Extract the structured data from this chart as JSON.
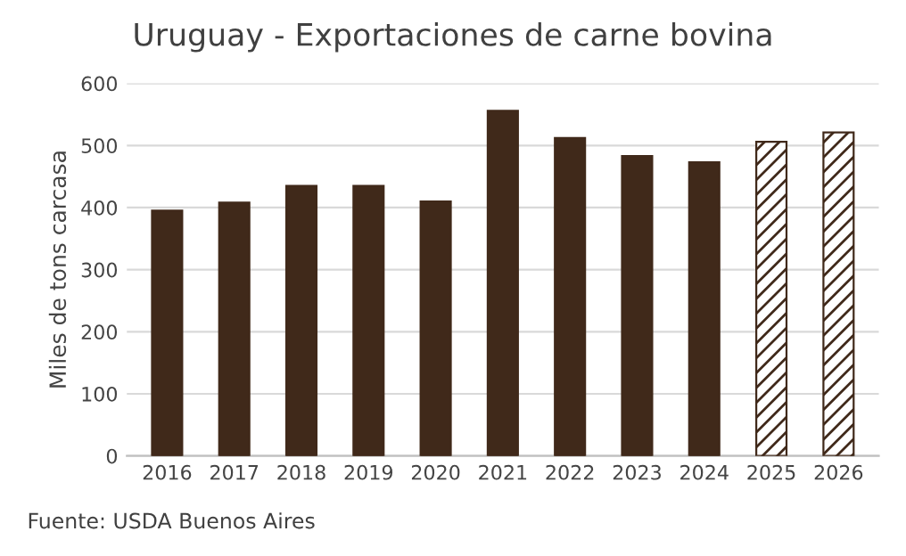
{
  "chart_data": {
    "type": "bar",
    "title": "Uruguay - Exportaciones de carne bovina",
    "ylabel": "Miles de tons carcasa",
    "categories": [
      "2016",
      "2017",
      "2018",
      "2019",
      "2020",
      "2021",
      "2022",
      "2023",
      "2024",
      "2025",
      "2026"
    ],
    "series": [
      {
        "color": "#40291a",
        "values": [
          395,
          408,
          435,
          435,
          410,
          556,
          512,
          483,
          473,
          null,
          null
        ]
      },
      {
        "color": "#40291a",
        "values": [
          null,
          null,
          null,
          null,
          null,
          null,
          null,
          null,
          null,
          506,
          521
        ]
      }
    ],
    "ylim": [
      0,
      600
    ],
    "yticks": [
      0,
      100,
      200,
      300,
      400,
      500,
      600
    ],
    "grid": "y",
    "legend": false,
    "annotations": [
      "Fuente: USDA Buenos Aires"
    ]
  }
}
